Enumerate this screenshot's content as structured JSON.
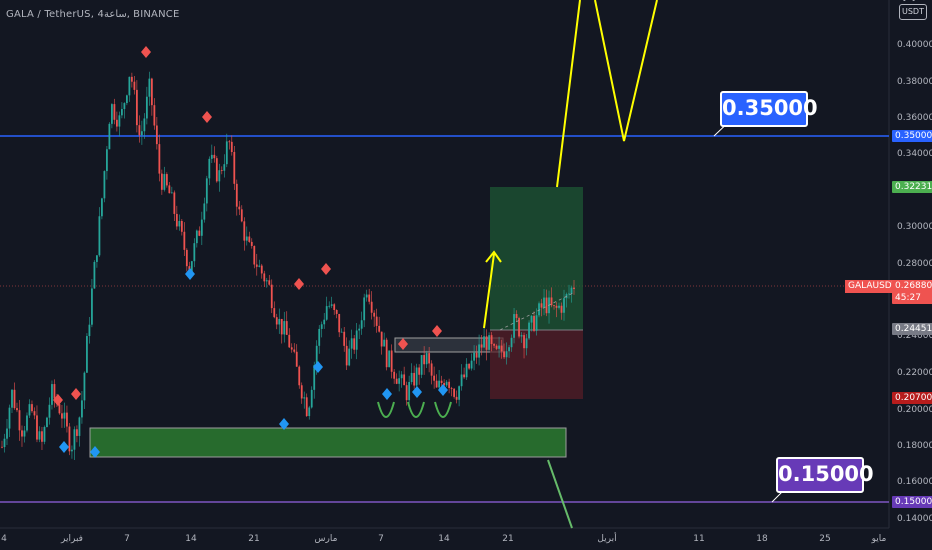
{
  "header": {
    "symbol_line": "GALA / TetherUS, 4ساعة, BINANCE"
  },
  "currency_label": "USDT",
  "price_axis": {
    "ticks": [
      "0.40000",
      "0.38000",
      "0.36000",
      "0.34000",
      "0.30000",
      "0.28000",
      "0.24000",
      "0.22000",
      "0.20000",
      "0.18000",
      "0.16000",
      "0.14000"
    ]
  },
  "badges": {
    "level_high": "0.35000",
    "target": "0.32231",
    "symbol_tag": "GALAUSDT",
    "last_price": "0.26880",
    "countdown": "45:27",
    "entry": "0.24451",
    "stop": "0.20700",
    "level_low": "0.15000"
  },
  "callouts": {
    "upper": "0.35000",
    "lower": "0.15000"
  },
  "time_axis": {
    "ticks": [
      "4",
      "فبراير",
      "7",
      "14",
      "21",
      "مارس",
      "7",
      "14",
      "21",
      "أبريل",
      "11",
      "18",
      "25",
      "مايو"
    ]
  },
  "colors": {
    "background": "#131722",
    "up": "#26a69a",
    "down": "#ef5350",
    "level_high": "#2962ff",
    "level_low": "#673ab7",
    "target_zone": "#1b4d2f",
    "stop_zone": "#4a1f25",
    "projection": "#ffff00",
    "support_zone": "#2b7a2f"
  },
  "chart_data": {
    "type": "candlestick",
    "ylim": [
      0.135,
      0.425
    ],
    "horizontal_levels": [
      0.35,
      0.15
    ],
    "support_zone": [
      0.175,
      0.19
    ],
    "consolidation_box": [
      0.232,
      0.24
    ],
    "position": {
      "entry": 0.24451,
      "target": 0.32231,
      "stop": 0.207
    },
    "close_path": [
      0.18,
      0.21,
      0.19,
      0.2,
      0.18,
      0.21,
      0.2,
      0.18,
      0.2,
      0.26,
      0.31,
      0.37,
      0.36,
      0.39,
      0.35,
      0.38,
      0.33,
      0.32,
      0.3,
      0.28,
      0.3,
      0.34,
      0.33,
      0.35,
      0.31,
      0.29,
      0.28,
      0.27,
      0.25,
      0.24,
      0.22,
      0.2,
      0.24,
      0.26,
      0.25,
      0.23,
      0.24,
      0.27,
      0.25,
      0.23,
      0.22,
      0.21,
      0.22,
      0.23,
      0.21,
      0.22,
      0.21,
      0.22,
      0.23,
      0.24,
      0.23,
      0.235,
      0.25,
      0.24,
      0.25,
      0.26,
      0.255,
      0.26,
      0.27
    ]
  }
}
